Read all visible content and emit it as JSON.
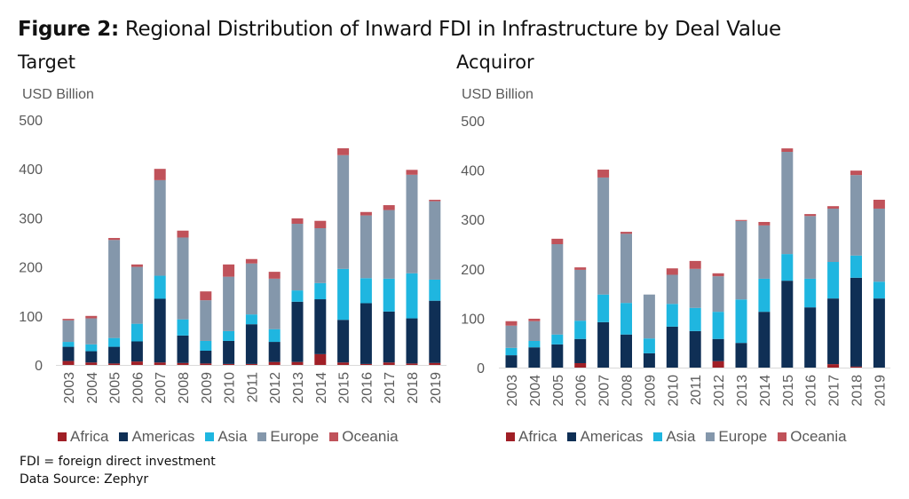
{
  "figure": {
    "title_bold": "Figure 2:",
    "title_rest": " Regional Distribution of Inward FDI in Infrastructure by Deal Value",
    "notes": [
      "FDI = foreign direct investment",
      "Data Source: Zephyr"
    ]
  },
  "legend": [
    {
      "name": "Africa",
      "color": "#a01f26"
    },
    {
      "name": "Americas",
      "color": "#0f2f55"
    },
    {
      "name": "Asia",
      "color": "#1fb6e0"
    },
    {
      "name": "Europe",
      "color": "#8497ab"
    },
    {
      "name": "Oceania",
      "color": "#c0525a"
    }
  ],
  "chart_data": [
    {
      "type": "bar",
      "stacked": true,
      "title": "Target",
      "ylabel": "USD Billion",
      "xlabel": "",
      "ylim": [
        0,
        500
      ],
      "yticks": [
        0,
        100,
        200,
        300,
        400,
        500
      ],
      "grid": false,
      "legend_position": "bottom",
      "categories": [
        "2003",
        "2004",
        "2005",
        "2006",
        "2007",
        "2008",
        "2009",
        "2010",
        "2011",
        "2012",
        "2013",
        "2014",
        "2015",
        "2016",
        "2017",
        "2018",
        "2019"
      ],
      "series": [
        {
          "name": "Africa",
          "color": "#a01f26",
          "values": [
            8,
            5,
            3,
            7,
            5,
            4,
            3,
            2,
            2,
            6,
            6,
            22,
            5,
            2,
            5,
            3,
            4
          ]
        },
        {
          "name": "Americas",
          "color": "#0f2f55",
          "values": [
            29,
            23,
            34,
            41,
            130,
            56,
            26,
            47,
            81,
            41,
            123,
            112,
            87,
            124,
            104,
            92,
            127
          ]
        },
        {
          "name": "Asia",
          "color": "#1fb6e0",
          "values": [
            10,
            14,
            18,
            36,
            47,
            33,
            20,
            20,
            20,
            26,
            23,
            33,
            104,
            51,
            67,
            92,
            43
          ]
        },
        {
          "name": "Europe",
          "color": "#8497ab",
          "values": [
            44,
            53,
            200,
            116,
            195,
            167,
            83,
            111,
            104,
            103,
            136,
            112,
            232,
            128,
            140,
            201,
            160
          ]
        },
        {
          "name": "Oceania",
          "color": "#c0525a",
          "values": [
            3,
            5,
            4,
            5,
            23,
            14,
            18,
            25,
            9,
            14,
            11,
            15,
            14,
            7,
            10,
            10,
            3
          ]
        }
      ]
    },
    {
      "type": "bar",
      "stacked": true,
      "title": "Acquiror",
      "ylabel": "USD Billion",
      "xlabel": "",
      "ylim": [
        0,
        500
      ],
      "yticks": [
        0,
        100,
        200,
        300,
        400,
        500
      ],
      "grid": false,
      "legend_position": "bottom",
      "categories": [
        "2003",
        "2004",
        "2005",
        "2006",
        "2007",
        "2008",
        "2009",
        "2010",
        "2011",
        "2012",
        "2013",
        "2014",
        "2015",
        "2016",
        "2017",
        "2018",
        "2019"
      ],
      "series": [
        {
          "name": "Africa",
          "color": "#a01f26",
          "values": [
            0,
            0,
            0,
            9,
            0,
            0,
            0,
            0,
            0,
            13,
            0,
            0,
            0,
            0,
            7,
            2,
            0
          ]
        },
        {
          "name": "Americas",
          "color": "#0f2f55",
          "values": [
            25,
            41,
            47,
            49,
            92,
            67,
            29,
            83,
            74,
            45,
            50,
            113,
            176,
            122,
            133,
            180,
            140
          ]
        },
        {
          "name": "Asia",
          "color": "#1fb6e0",
          "values": [
            15,
            13,
            20,
            37,
            56,
            64,
            30,
            46,
            47,
            55,
            88,
            67,
            54,
            58,
            74,
            45,
            34
          ]
        },
        {
          "name": "Europe",
          "color": "#8497ab",
          "values": [
            45,
            40,
            183,
            103,
            237,
            140,
            89,
            59,
            79,
            72,
            159,
            108,
            207,
            127,
            108,
            163,
            148
          ]
        },
        {
          "name": "Oceania",
          "color": "#c0525a",
          "values": [
            9,
            5,
            11,
            5,
            16,
            4,
            0,
            13,
            16,
            6,
            2,
            7,
            7,
            4,
            5,
            9,
            18
          ]
        }
      ]
    }
  ]
}
